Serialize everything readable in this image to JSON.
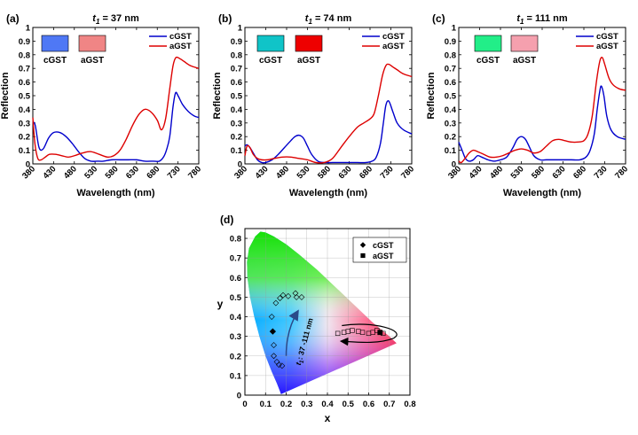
{
  "chart_data": [
    {
      "type": "line",
      "panel_label": "(a)",
      "title_prefix": "t",
      "title_sub": "1",
      "title_suffix": " = 37 nm",
      "xlabel": "Wavelength (nm)",
      "ylabel": "Reflection",
      "xlim": [
        380,
        780
      ],
      "ylim": [
        0,
        1
      ],
      "xticks": [
        380,
        430,
        480,
        530,
        580,
        630,
        680,
        730,
        780
      ],
      "yticks": [
        0,
        0.1,
        0.2,
        0.3,
        0.4,
        0.5,
        0.6,
        0.7,
        0.8,
        0.9,
        1
      ],
      "legend": {
        "placement": "top-right",
        "entries": [
          "cGST",
          "aGST"
        ]
      },
      "swatches": [
        {
          "label": "cGST",
          "color": "#4f78f5"
        },
        {
          "label": "aGST",
          "color": "#f08585"
        }
      ],
      "series": [
        {
          "name": "cGST",
          "color": "#0000cc",
          "x": [
            380,
            386,
            395,
            405,
            418,
            430,
            445,
            460,
            475,
            490,
            505,
            520,
            535,
            550,
            570,
            590,
            610,
            630,
            650,
            670,
            685,
            695,
            702,
            710,
            718,
            724,
            730,
            740,
            750,
            760,
            770,
            780
          ],
          "y": [
            0.31,
            0.28,
            0.12,
            0.11,
            0.19,
            0.23,
            0.23,
            0.2,
            0.15,
            0.09,
            0.04,
            0.02,
            0.02,
            0.02,
            0.03,
            0.03,
            0.03,
            0.03,
            0.02,
            0.02,
            0.02,
            0.05,
            0.1,
            0.2,
            0.42,
            0.52,
            0.5,
            0.44,
            0.4,
            0.37,
            0.35,
            0.34
          ]
        },
        {
          "name": "aGST",
          "color": "#dd0000",
          "x": [
            380,
            385,
            392,
            400,
            410,
            420,
            435,
            450,
            465,
            480,
            500,
            520,
            540,
            560,
            575,
            590,
            605,
            620,
            635,
            650,
            665,
            680,
            690,
            700,
            710,
            718,
            725,
            735,
            745,
            760,
            780
          ],
          "y": [
            0.34,
            0.15,
            0.04,
            0.03,
            0.05,
            0.07,
            0.07,
            0.06,
            0.05,
            0.06,
            0.08,
            0.09,
            0.07,
            0.05,
            0.06,
            0.1,
            0.18,
            0.28,
            0.36,
            0.4,
            0.38,
            0.32,
            0.25,
            0.33,
            0.55,
            0.72,
            0.78,
            0.77,
            0.75,
            0.72,
            0.7
          ]
        }
      ]
    },
    {
      "type": "line",
      "panel_label": "(b)",
      "title_prefix": "t",
      "title_sub": "1",
      "title_suffix": " = 74 nm",
      "xlabel": "Wavelength (nm)",
      "ylabel": "Reflection",
      "xlim": [
        380,
        780
      ],
      "ylim": [
        0,
        1
      ],
      "xticks": [
        380,
        430,
        480,
        530,
        580,
        630,
        680,
        730,
        780
      ],
      "yticks": [
        0,
        0.1,
        0.2,
        0.3,
        0.4,
        0.5,
        0.6,
        0.7,
        0.8,
        0.9,
        1
      ],
      "legend": {
        "placement": "top-right",
        "entries": [
          "cGST",
          "aGST"
        ]
      },
      "swatches": [
        {
          "label": "cGST",
          "color": "#10c4c8"
        },
        {
          "label": "aGST",
          "color": "#ee0000"
        }
      ],
      "series": [
        {
          "name": "cGST",
          "color": "#0000cc",
          "x": [
            380,
            385,
            392,
            400,
            410,
            420,
            430,
            445,
            460,
            475,
            490,
            500,
            510,
            520,
            530,
            540,
            555,
            570,
            590,
            610,
            630,
            650,
            670,
            685,
            695,
            705,
            712,
            718,
            725,
            735,
            745,
            760,
            780
          ],
          "y": [
            0.13,
            0.14,
            0.12,
            0.08,
            0.03,
            0.01,
            0.01,
            0.03,
            0.07,
            0.12,
            0.17,
            0.2,
            0.21,
            0.19,
            0.13,
            0.07,
            0.02,
            0.01,
            0.01,
            0.01,
            0.01,
            0.01,
            0.01,
            0.02,
            0.05,
            0.15,
            0.3,
            0.43,
            0.46,
            0.38,
            0.3,
            0.25,
            0.22
          ]
        },
        {
          "name": "aGST",
          "color": "#dd0000",
          "x": [
            380,
            385,
            392,
            400,
            410,
            420,
            435,
            450,
            470,
            490,
            510,
            530,
            550,
            570,
            590,
            610,
            630,
            650,
            665,
            680,
            690,
            700,
            710,
            718,
            725,
            735,
            745,
            760,
            780
          ],
          "y": [
            0.06,
            0.13,
            0.12,
            0.07,
            0.04,
            0.03,
            0.03,
            0.04,
            0.05,
            0.05,
            0.04,
            0.03,
            0.01,
            0.01,
            0.04,
            0.12,
            0.2,
            0.27,
            0.3,
            0.33,
            0.37,
            0.5,
            0.65,
            0.72,
            0.73,
            0.71,
            0.69,
            0.66,
            0.64
          ]
        }
      ]
    },
    {
      "type": "line",
      "panel_label": "(c)",
      "title_prefix": "t",
      "title_sub": "1",
      "title_suffix": " = 111 nm",
      "xlabel": "Wavelength (nm)",
      "ylabel": "Reflection",
      "xlim": [
        380,
        780
      ],
      "ylim": [
        0,
        1
      ],
      "xticks": [
        380,
        430,
        480,
        530,
        580,
        630,
        680,
        730,
        780
      ],
      "yticks": [
        0,
        0.1,
        0.2,
        0.3,
        0.4,
        0.5,
        0.6,
        0.7,
        0.8,
        0.9,
        1
      ],
      "legend": {
        "placement": "top-right",
        "entries": [
          "cGST",
          "aGST"
        ]
      },
      "swatches": [
        {
          "label": "cGST",
          "color": "#22ee88"
        },
        {
          "label": "aGST",
          "color": "#f5a0ae"
        }
      ],
      "series": [
        {
          "name": "cGST",
          "color": "#0000cc",
          "x": [
            380,
            388,
            396,
            405,
            415,
            425,
            435,
            450,
            465,
            480,
            495,
            510,
            520,
            530,
            540,
            550,
            560,
            575,
            590,
            610,
            630,
            650,
            670,
            685,
            695,
            705,
            712,
            718,
            722,
            728,
            735,
            745,
            760,
            780
          ],
          "y": [
            0.16,
            0.1,
            0.04,
            0.02,
            0.03,
            0.06,
            0.05,
            0.03,
            0.02,
            0.03,
            0.05,
            0.12,
            0.18,
            0.2,
            0.18,
            0.12,
            0.06,
            0.03,
            0.03,
            0.03,
            0.03,
            0.03,
            0.03,
            0.05,
            0.1,
            0.22,
            0.4,
            0.53,
            0.57,
            0.5,
            0.35,
            0.25,
            0.2,
            0.18
          ]
        },
        {
          "name": "aGST",
          "color": "#dd0000",
          "x": [
            380,
            386,
            395,
            405,
            415,
            425,
            440,
            455,
            470,
            485,
            500,
            515,
            530,
            545,
            560,
            575,
            590,
            605,
            620,
            635,
            650,
            665,
            680,
            690,
            700,
            710,
            718,
            724,
            730,
            740,
            750,
            765,
            780
          ],
          "y": [
            0.02,
            0.01,
            0.04,
            0.08,
            0.1,
            0.09,
            0.07,
            0.05,
            0.05,
            0.06,
            0.08,
            0.1,
            0.11,
            0.1,
            0.08,
            0.09,
            0.13,
            0.17,
            0.18,
            0.17,
            0.16,
            0.16,
            0.17,
            0.22,
            0.35,
            0.6,
            0.75,
            0.78,
            0.73,
            0.63,
            0.58,
            0.55,
            0.54
          ]
        }
      ]
    },
    {
      "type": "scatter",
      "panel_label": "(d)",
      "xlabel": "x",
      "ylabel": "y",
      "xlim": [
        0,
        0.8
      ],
      "ylim": [
        0,
        0.85
      ],
      "xticks": [
        0,
        0.1,
        0.2,
        0.3,
        0.4,
        0.5,
        0.6,
        0.7,
        0.8
      ],
      "yticks": [
        0,
        0.1,
        0.2,
        0.3,
        0.4,
        0.5,
        0.6,
        0.7,
        0.8
      ],
      "grid": true,
      "legend": {
        "placement": "top-right",
        "entries": [
          "cGST",
          "aGST"
        ]
      },
      "annotation_prefix": "t",
      "annotation_sub": "1",
      "annotation_suffix": ": 37 -111 nm",
      "series": [
        {
          "name": "cGST",
          "marker": "diamond",
          "filled_point": {
            "x": 0.135,
            "y": 0.325
          },
          "x": [
            0.13,
            0.15,
            0.17,
            0.185,
            0.14,
            0.14,
            0.155,
            0.165,
            0.18,
            0.21,
            0.245,
            0.275,
            0.25
          ],
          "y": [
            0.4,
            0.47,
            0.495,
            0.51,
            0.255,
            0.2,
            0.17,
            0.155,
            0.15,
            0.505,
            0.52,
            0.5,
            0.5
          ]
        },
        {
          "name": "aGST",
          "marker": "square",
          "filled_point": {
            "x": 0.655,
            "y": 0.32
          },
          "x": [
            0.45,
            0.48,
            0.5,
            0.52,
            0.55,
            0.57,
            0.6,
            0.62,
            0.64,
            0.67
          ],
          "y": [
            0.315,
            0.32,
            0.325,
            0.33,
            0.325,
            0.32,
            0.315,
            0.32,
            0.33,
            0.315
          ]
        }
      ]
    }
  ]
}
